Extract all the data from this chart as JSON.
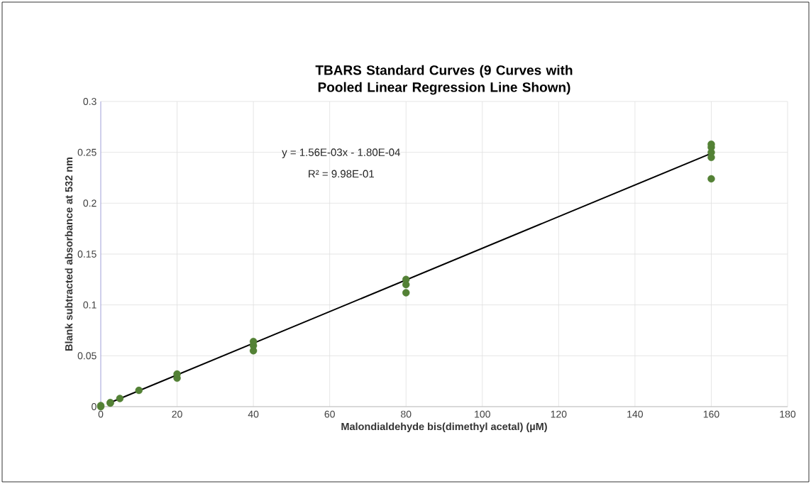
{
  "chart_data": {
    "type": "scatter",
    "title": "TBARS Standard Curves (9 Curves with Pooled Linear Regression Line Shown)",
    "xlabel": "Malondialdehyde bis(dimethyl acetal) (µM)",
    "ylabel": "Blank subtracted absorbance at 532 nm",
    "xlim": [
      0,
      180
    ],
    "xticks": [
      0,
      20,
      40,
      60,
      80,
      100,
      120,
      140,
      160,
      180
    ],
    "ylim": [
      0,
      0.3
    ],
    "yticks": [
      0,
      0.05,
      0.1,
      0.15,
      0.2,
      0.25,
      0.3
    ],
    "grid": true,
    "marker": "circle",
    "annotations": [
      "y = 1.56E-03x - 1.80E-04",
      "R² = 9.98E-01"
    ],
    "series": [
      {
        "type": "scatter",
        "color": "#538135",
        "x": [
          0,
          0,
          2.5,
          2.5,
          5,
          10,
          20,
          20,
          40,
          40,
          40,
          80,
          80,
          80,
          160,
          160,
          160,
          160,
          160
        ],
        "values": [
          0,
          0.001,
          0.0035,
          0.004,
          0.008,
          0.016,
          0.028,
          0.032,
          0.055,
          0.06,
          0.064,
          0.112,
          0.12,
          0.125,
          0.224,
          0.245,
          0.25,
          0.255,
          0.258
        ]
      },
      {
        "type": "line",
        "color": "#000000",
        "marker": "none",
        "x": [
          2.5,
          160
        ],
        "values": [
          0.004,
          0.249
        ]
      }
    ]
  }
}
